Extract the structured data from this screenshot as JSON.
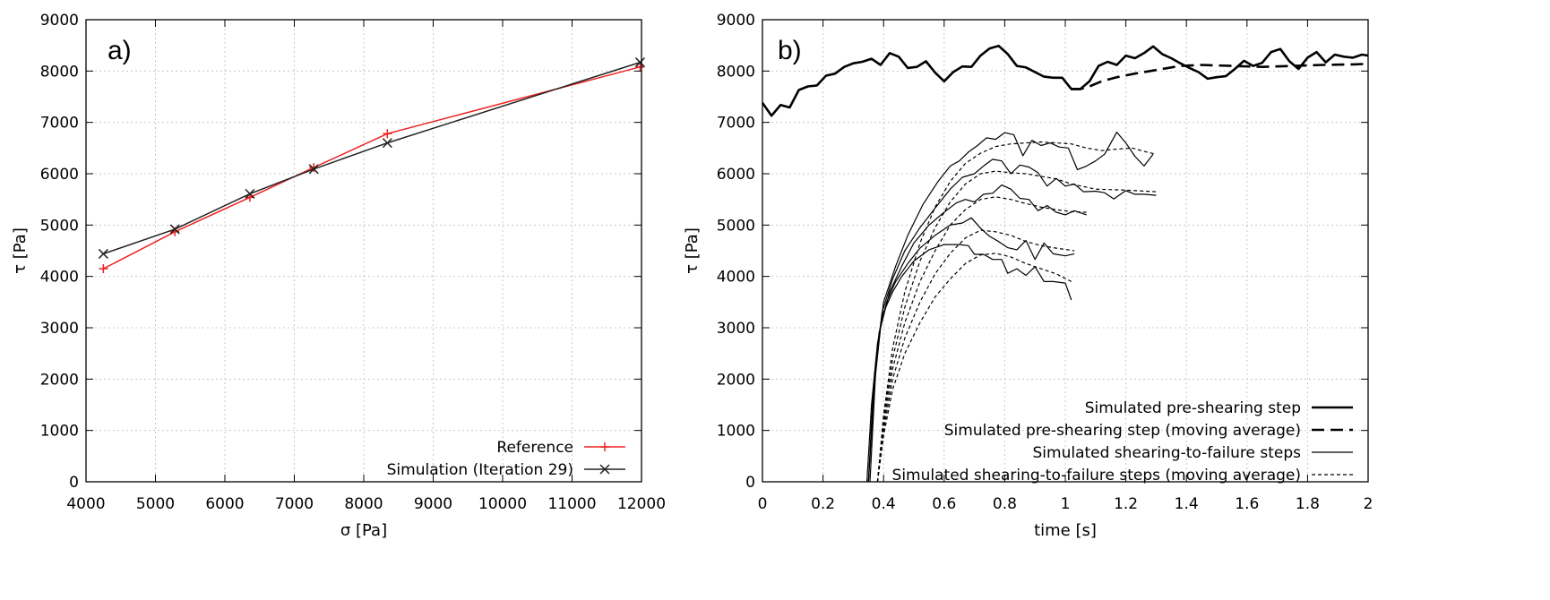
{
  "chart_data": [
    {
      "type": "line",
      "panel_label": "a)",
      "xlabel": "σ [Pa]",
      "ylabel": "τ [Pa]",
      "xlim": [
        4000,
        12000
      ],
      "ylim": [
        0,
        9000
      ],
      "xticks": [
        "4000",
        "5000",
        "6000",
        "7000",
        "8000",
        "9000",
        "10000",
        "11000",
        "12000"
      ],
      "yticks": [
        "0",
        "1000",
        "2000",
        "3000",
        "4000",
        "5000",
        "6000",
        "7000",
        "8000",
        "9000"
      ],
      "grid": true,
      "legend_position": "bottom-right",
      "series": [
        {
          "name": "Reference",
          "color": "#ee2222",
          "marker": "+",
          "x": [
            4250,
            5280,
            6360,
            7280,
            8340,
            11980
          ],
          "y": [
            4150,
            4870,
            5540,
            6120,
            6780,
            8080
          ]
        },
        {
          "name": "Simulation (Iteration 29)",
          "color": "#222222",
          "marker": "x",
          "x": [
            4250,
            5280,
            6360,
            7280,
            8340,
            11980
          ],
          "y": [
            4440,
            4920,
            5610,
            6090,
            6600,
            8170
          ]
        }
      ]
    },
    {
      "type": "line",
      "panel_label": "b)",
      "xlabel": "time [s]",
      "ylabel": "τ [Pa]",
      "xlim": [
        0,
        2
      ],
      "ylim": [
        0,
        9000
      ],
      "xticks": [
        "0",
        "0.2",
        "0.4",
        "0.6",
        "0.8",
        "1",
        "1.2",
        "1.4",
        "1.6",
        "1.8",
        "2"
      ],
      "yticks": [
        "0",
        "1000",
        "2000",
        "3000",
        "4000",
        "5000",
        "6000",
        "7000",
        "8000",
        "9000"
      ],
      "grid": true,
      "legend_position": "bottom-right",
      "legend": [
        {
          "name": "Simulated pre-shearing step",
          "style": "thick-solid"
        },
        {
          "name": "Simulated pre-shearing step (moving average)",
          "style": "thick-dashed"
        },
        {
          "name": "Simulated shearing-to-failure steps",
          "style": "thin-solid"
        },
        {
          "name": "Simulated shearing-to-failure steps (moving average)",
          "style": "thin-dashed"
        }
      ],
      "series": [
        {
          "group": "pre-shearing",
          "style": "thick-solid",
          "x": [
            0.0,
            0.03,
            0.06,
            0.09,
            0.12,
            0.15,
            0.18,
            0.21,
            0.24,
            0.27,
            0.3,
            0.33,
            0.36,
            0.39,
            0.42,
            0.45,
            0.48,
            0.51,
            0.54,
            0.57,
            0.6,
            0.63,
            0.66,
            0.69,
            0.72,
            0.75,
            0.78,
            0.81,
            0.84,
            0.87,
            0.9,
            0.93,
            0.96,
            0.99,
            1.02,
            1.05,
            1.08,
            1.11,
            1.14,
            1.17,
            1.2,
            1.23,
            1.26,
            1.29,
            1.32,
            1.35,
            1.38,
            1.41,
            1.44,
            1.47,
            1.5,
            1.53,
            1.56,
            1.59,
            1.62,
            1.65,
            1.68,
            1.71,
            1.74,
            1.77,
            1.8,
            1.83,
            1.86,
            1.89,
            1.92,
            1.95,
            1.98,
            2.0
          ],
          "y": [
            7380,
            7130,
            7340,
            7290,
            7630,
            7700,
            7720,
            7910,
            7950,
            8080,
            8150,
            8180,
            8240,
            8120,
            8350,
            8280,
            8060,
            8080,
            8190,
            7970,
            7800,
            7980,
            8090,
            8080,
            8300,
            8440,
            8490,
            8330,
            8100,
            8070,
            7980,
            7890,
            7870,
            7870,
            7650,
            7650,
            7800,
            8100,
            8180,
            8120,
            8300,
            8250,
            8350,
            8480,
            8330,
            8250,
            8150,
            8060,
            7980,
            7850,
            7880,
            7900,
            8040,
            8200,
            8100,
            8160,
            8370,
            8430,
            8190,
            8040,
            8260,
            8370,
            8170,
            8320,
            8280,
            8260,
            8320,
            8300
          ]
        },
        {
          "group": "pre-shearing",
          "style": "thick-dashed",
          "x": [
            1.02,
            1.05,
            1.08,
            1.12,
            1.17,
            1.23,
            1.3,
            1.38,
            1.45,
            1.55,
            1.65,
            1.75,
            1.85,
            1.95,
            2.0
          ],
          "y": [
            7650,
            7650,
            7700,
            7800,
            7880,
            7950,
            8020,
            8100,
            8120,
            8100,
            8080,
            8100,
            8120,
            8130,
            8140
          ]
        },
        {
          "group": "shearing-to-failure",
          "style": "thin-solid",
          "x": [
            0.345,
            0.36,
            0.38,
            0.4,
            0.43,
            0.46,
            0.5,
            0.55,
            0.6,
            0.65,
            0.68,
            0.7,
            0.73,
            0.76,
            0.79,
            0.81,
            0.84,
            0.87,
            0.9,
            0.93,
            0.96,
            1.0,
            1.02
          ],
          "y": [
            0,
            1500,
            2700,
            3300,
            3700,
            4000,
            4300,
            4520,
            4620,
            4620,
            4600,
            4430,
            4430,
            4330,
            4330,
            4060,
            4150,
            4020,
            4190,
            3900,
            3900,
            3870,
            3540
          ]
        },
        {
          "group": "shearing-to-failure",
          "style": "thin-solid",
          "x": [
            0.35,
            0.365,
            0.385,
            0.41,
            0.44,
            0.48,
            0.52,
            0.57,
            0.62,
            0.66,
            0.69,
            0.72,
            0.75,
            0.78,
            0.81,
            0.84,
            0.87,
            0.9,
            0.93,
            0.96,
            1.0,
            1.03
          ],
          "y": [
            0,
            1700,
            2900,
            3500,
            3900,
            4250,
            4550,
            4800,
            5000,
            5040,
            5140,
            4940,
            4780,
            4680,
            4560,
            4520,
            4700,
            4330,
            4650,
            4440,
            4400,
            4440
          ]
        },
        {
          "group": "shearing-to-failure",
          "style": "thin-solid",
          "x": [
            0.35,
            0.37,
            0.39,
            0.42,
            0.46,
            0.5,
            0.55,
            0.6,
            0.64,
            0.67,
            0.7,
            0.73,
            0.76,
            0.79,
            0.82,
            0.85,
            0.88,
            0.91,
            0.94,
            0.97,
            1.0,
            1.03,
            1.07
          ],
          "y": [
            0,
            1900,
            3000,
            3700,
            4200,
            4650,
            5000,
            5250,
            5430,
            5500,
            5450,
            5600,
            5620,
            5780,
            5700,
            5520,
            5500,
            5280,
            5380,
            5250,
            5200,
            5280,
            5200
          ]
        },
        {
          "group": "shearing-to-failure",
          "style": "thin-solid",
          "x": [
            0.35,
            0.37,
            0.395,
            0.43,
            0.47,
            0.52,
            0.57,
            0.62,
            0.66,
            0.7,
            0.73,
            0.76,
            0.79,
            0.82,
            0.85,
            0.88,
            0.91,
            0.94,
            0.97,
            1.0,
            1.03,
            1.06,
            1.1,
            1.13,
            1.16,
            1.2,
            1.23,
            1.26,
            1.3
          ],
          "y": [
            0,
            2100,
            3300,
            3950,
            4500,
            4950,
            5330,
            5700,
            5930,
            6000,
            6150,
            6280,
            6250,
            6000,
            6170,
            6130,
            6020,
            5760,
            5910,
            5760,
            5800,
            5650,
            5660,
            5630,
            5510,
            5670,
            5600,
            5600,
            5580
          ]
        },
        {
          "group": "shearing-to-failure",
          "style": "thin-solid",
          "x": [
            0.355,
            0.375,
            0.4,
            0.44,
            0.48,
            0.53,
            0.58,
            0.62,
            0.65,
            0.68,
            0.71,
            0.74,
            0.77,
            0.8,
            0.83,
            0.86,
            0.89,
            0.92,
            0.95,
            0.98,
            1.01,
            1.04,
            1.07,
            1.1,
            1.13,
            1.17,
            1.2,
            1.23,
            1.26,
            1.29
          ],
          "y": [
            0,
            2300,
            3500,
            4200,
            4800,
            5400,
            5850,
            6150,
            6250,
            6420,
            6550,
            6700,
            6670,
            6800,
            6760,
            6350,
            6650,
            6550,
            6600,
            6520,
            6500,
            6080,
            6150,
            6250,
            6380,
            6810,
            6600,
            6340,
            6150,
            6380
          ]
        },
        {
          "group": "shearing-to-failure",
          "style": "thin-dashed",
          "x": [
            0.38,
            0.4,
            0.43,
            0.47,
            0.52,
            0.57,
            0.62,
            0.67,
            0.72,
            0.77,
            0.82,
            0.87,
            0.92,
            0.97,
            1.02
          ],
          "y": [
            0,
            900,
            1800,
            2500,
            3100,
            3600,
            3950,
            4250,
            4420,
            4450,
            4380,
            4250,
            4150,
            4050,
            3900
          ]
        },
        {
          "group": "shearing-to-failure",
          "style": "thin-dashed",
          "x": [
            0.38,
            0.4,
            0.43,
            0.47,
            0.52,
            0.57,
            0.62,
            0.67,
            0.72,
            0.77,
            0.82,
            0.87,
            0.92,
            0.97,
            1.03
          ],
          "y": [
            0,
            1000,
            2000,
            2800,
            3500,
            4050,
            4450,
            4750,
            4900,
            4870,
            4800,
            4680,
            4600,
            4550,
            4500
          ]
        },
        {
          "group": "shearing-to-failure",
          "style": "thin-dashed",
          "x": [
            0.38,
            0.4,
            0.43,
            0.47,
            0.52,
            0.57,
            0.62,
            0.67,
            0.72,
            0.77,
            0.82,
            0.87,
            0.92,
            0.97,
            1.02,
            1.07
          ],
          "y": [
            0,
            1100,
            2200,
            3100,
            3900,
            4500,
            5000,
            5300,
            5500,
            5550,
            5500,
            5420,
            5350,
            5300,
            5260,
            5250
          ]
        },
        {
          "group": "shearing-to-failure",
          "style": "thin-dashed",
          "x": [
            0.38,
            0.4,
            0.43,
            0.47,
            0.52,
            0.57,
            0.62,
            0.67,
            0.72,
            0.77,
            0.82,
            0.87,
            0.92,
            0.97,
            1.02,
            1.1,
            1.2,
            1.3
          ],
          "y": [
            0,
            1200,
            2400,
            3400,
            4300,
            4950,
            5450,
            5800,
            6000,
            6050,
            6020,
            6000,
            5950,
            5900,
            5800,
            5700,
            5680,
            5650
          ]
        },
        {
          "group": "shearing-to-failure",
          "style": "thin-dashed",
          "x": [
            0.38,
            0.4,
            0.43,
            0.47,
            0.52,
            0.57,
            0.62,
            0.67,
            0.72,
            0.77,
            0.82,
            0.87,
            0.92,
            0.97,
            1.02,
            1.07,
            1.12,
            1.17,
            1.22,
            1.27,
            1.3
          ],
          "y": [
            0,
            1300,
            2600,
            3700,
            4650,
            5350,
            5850,
            6200,
            6400,
            6530,
            6580,
            6600,
            6620,
            6600,
            6580,
            6500,
            6450,
            6480,
            6500,
            6420,
            6380
          ]
        }
      ]
    }
  ]
}
